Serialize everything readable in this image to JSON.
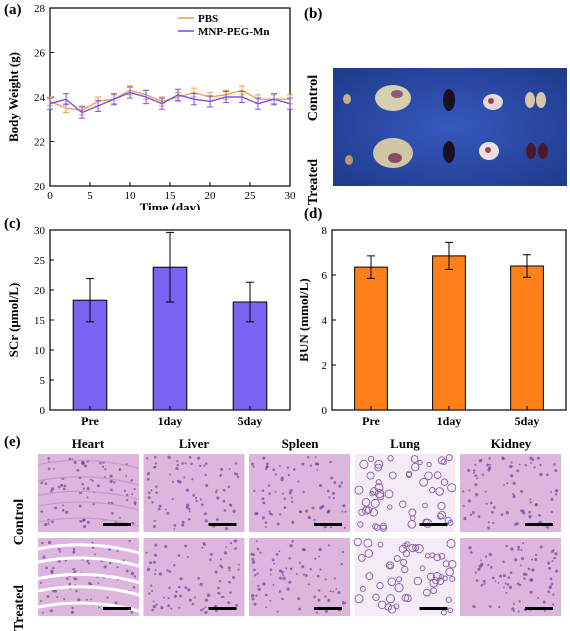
{
  "panels": {
    "a": "(a)",
    "b": "(b)",
    "c": "(c)",
    "d": "(d)",
    "e": "(e)"
  },
  "photo_b": {
    "rows": [
      "Control",
      "Treated"
    ]
  },
  "histology_e": {
    "columns": [
      "Heart",
      "Liver",
      "Spleen",
      "Lung",
      "Kidney"
    ],
    "rows": [
      "Control",
      "Treated"
    ]
  },
  "colors": {
    "pbs": "#f0a050",
    "mnp": "#7a55e0",
    "bar_scr": "#7b63f2",
    "bar_bun": "#ff7f1a",
    "photo_bg": "#2a4aa8",
    "tissue": "#d9b2d9"
  },
  "chart_data": [
    {
      "type": "line",
      "ylabel": "Body Weight (g)",
      "xlabel": "Time (day)",
      "xlim": [
        0,
        30
      ],
      "ylim": [
        20,
        28
      ],
      "xticks": [
        "0",
        "5",
        "10",
        "15",
        "20",
        "25",
        "30"
      ],
      "yticks": [
        "20",
        "22",
        "24",
        "26",
        "28"
      ],
      "legend_position": "top-right",
      "series": [
        {
          "name": "PBS",
          "x": [
            0,
            2,
            4,
            6,
            8,
            10,
            12,
            14,
            16,
            18,
            20,
            22,
            24,
            26,
            28,
            30
          ],
          "y": [
            23.8,
            23.5,
            23.4,
            23.8,
            23.9,
            24.3,
            24.1,
            23.8,
            24.0,
            24.2,
            24.0,
            24.1,
            24.3,
            23.9,
            23.9,
            23.9
          ],
          "err": [
            0.2,
            0.2,
            0.2,
            0.2,
            0.2,
            0.2,
            0.2,
            0.2,
            0.2,
            0.2,
            0.2,
            0.2,
            0.2,
            0.2,
            0.2,
            0.2
          ]
        },
        {
          "name": "MNP-PEG-Mn",
          "x": [
            0,
            2,
            4,
            6,
            8,
            10,
            12,
            14,
            16,
            18,
            20,
            22,
            24,
            26,
            28,
            30
          ],
          "y": [
            23.7,
            23.9,
            23.3,
            23.6,
            23.9,
            24.2,
            24.0,
            23.7,
            24.1,
            23.9,
            23.8,
            24.0,
            24.0,
            23.7,
            23.9,
            23.7
          ],
          "err": [
            0.25,
            0.25,
            0.25,
            0.25,
            0.25,
            0.25,
            0.3,
            0.25,
            0.25,
            0.25,
            0.25,
            0.25,
            0.25,
            0.25,
            0.25,
            0.25
          ]
        }
      ]
    },
    {
      "type": "bar",
      "ylabel": "SCr (μmol/L)",
      "categories": [
        "Pre",
        "1day",
        "5day"
      ],
      "values": [
        18.3,
        23.8,
        18.0
      ],
      "err": [
        3.6,
        5.8,
        3.3
      ],
      "ylim": [
        0,
        30
      ],
      "yticks": [
        "0",
        "5",
        "10",
        "15",
        "20",
        "25",
        "30"
      ]
    },
    {
      "type": "bar",
      "ylabel": "BUN (mmol/L)",
      "categories": [
        "Pre",
        "1day",
        "5day"
      ],
      "values": [
        6.35,
        6.85,
        6.4
      ],
      "err": [
        0.5,
        0.6,
        0.5
      ],
      "ylim": [
        0,
        8
      ],
      "yticks": [
        "0",
        "2",
        "4",
        "6",
        "8"
      ]
    }
  ]
}
